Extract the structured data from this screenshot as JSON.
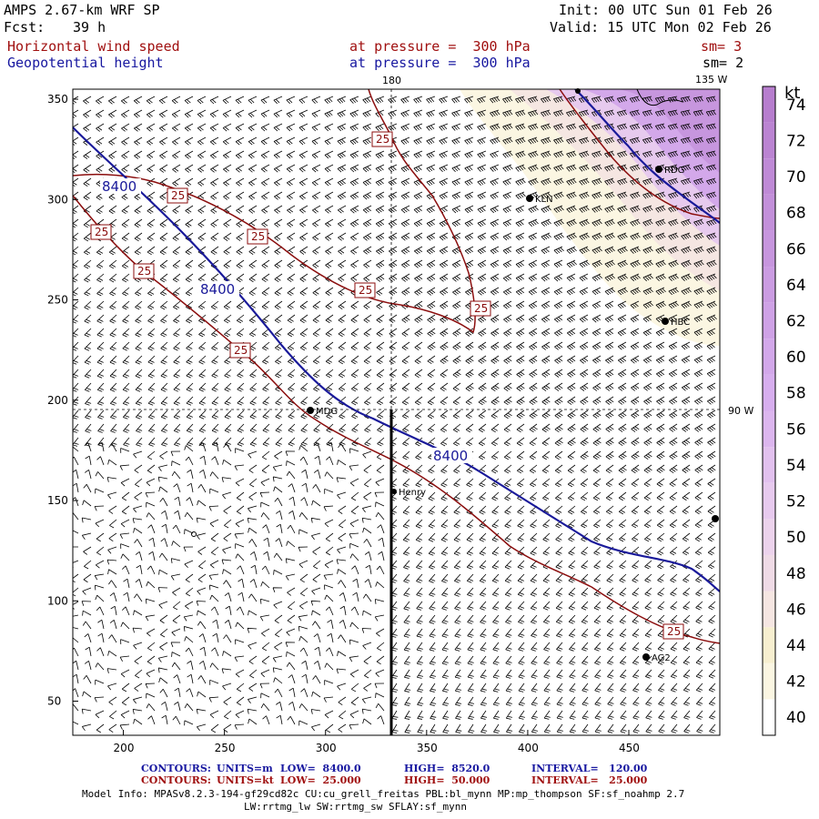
{
  "header": {
    "model": "AMPS 2.67-km WRF SP",
    "fcst_label": "Fcst:",
    "fcst_value": "39 h",
    "init": "Init: 00 UTC Sun 01 Feb 26",
    "valid": "Valid: 15 UTC Mon 02 Feb 26",
    "field1": "Horizontal wind speed",
    "field1_level": "at pressure =  300 hPa",
    "field1_sm": "sm= 3",
    "field2": "Geopotential height",
    "field2_level": "at pressure =  300 hPa",
    "field2_sm": "sm= 2"
  },
  "map": {
    "lon_labels": [
      "180",
      "135 W",
      "90 W"
    ],
    "stations": [
      "KLN",
      "RDG",
      "HBC",
      "MDG",
      "Henry",
      "AG2"
    ],
    "contour_labels_height": [
      "8400",
      "8400",
      "8400"
    ],
    "contour_labels_speed": [
      "25",
      "25",
      "25",
      "25",
      "25",
      "25",
      "25",
      "25"
    ],
    "x_axis": {
      "min": 175,
      "max": 495,
      "ticks": [
        200,
        250,
        300,
        350,
        400,
        450
      ]
    },
    "y_axis": {
      "min": 33,
      "max": 355,
      "ticks": [
        50,
        100,
        150,
        200,
        250,
        300,
        350
      ]
    },
    "cross_section": {
      "x": 334,
      "y_start": 195,
      "y_end": 33
    }
  },
  "colorbar": {
    "unit": "kt",
    "levels": [
      40,
      42,
      44,
      46,
      48,
      50,
      52,
      54,
      56,
      58,
      60,
      62,
      64,
      66,
      68,
      70,
      72,
      74
    ],
    "colors": [
      "#ffffff",
      "#fbf6e2",
      "#f7efd0",
      "#f5e6e2",
      "#efdbe6",
      "#ecd3ec",
      "#e7caee",
      "#e2c1ee",
      "#dcb6ee",
      "#d7aeee",
      "#d3a8ea",
      "#cfa2e6",
      "#cb9ce2",
      "#c796de",
      "#c390da",
      "#bf8ad6",
      "#bb84d2",
      "#b77ece"
    ]
  },
  "footer": {
    "c1_label": "CONTOURS:",
    "c1_units": "UNITS=m",
    "c1_low": "LOW=  8400.0",
    "c1_high": "HIGH=  8520.0",
    "c1_int": "INTERVAL=   120.00",
    "c2_label": "CONTOURS:",
    "c2_units": "UNITS=kt",
    "c2_low": "LOW=  25.000",
    "c2_high": "HIGH=  50.000",
    "c2_int": "INTERVAL=   25.000",
    "model_info": "Model Info: MPASv8.2.3-194-gf29cd82c CU:cu_grell_freitas PBL:bl_mynn MP:mp_thompson SF:sf_noahmp 2.7",
    "model_info2": "LW:rrtmg_lw SW:rrtmg_sw SFLAY:sf_mynn"
  }
}
